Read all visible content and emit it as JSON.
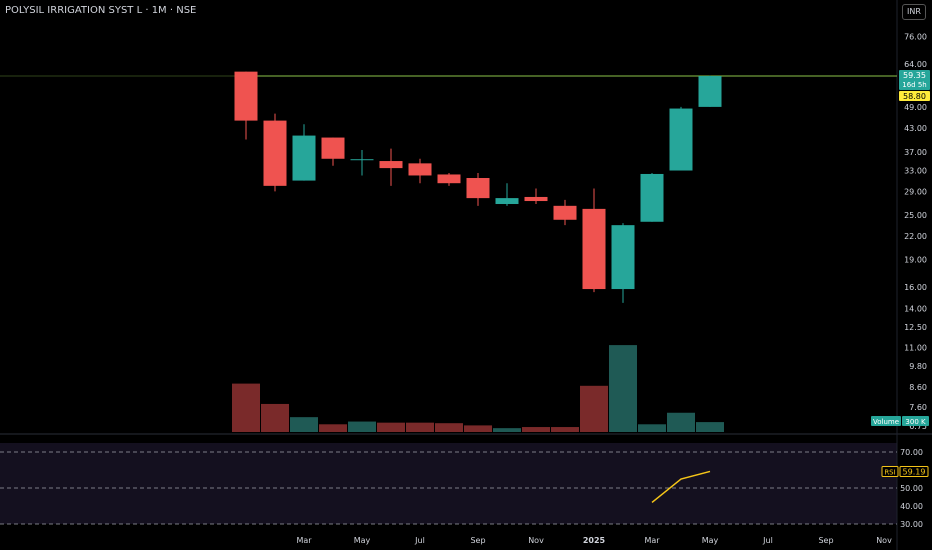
{
  "header": {
    "symbol_line": "POLYSIL IRRIGATION SYST L · 1M · NSE",
    "currency": "INR"
  },
  "colors": {
    "up": "#26a69a",
    "down": "#ef5350",
    "up_volume": "#1f5a55",
    "down_volume": "#7a2a2a",
    "background": "#000000",
    "rsi_line": "#f5c518",
    "hline": "#8bc34a",
    "text": "#d1d4dc"
  },
  "chart_data": [
    {
      "type": "candlestick",
      "title": "POLYSIL IRRIGATION SYST L · 1M · NSE",
      "y_scale": "log",
      "ylim": [
        6.5,
        80
      ],
      "y_ticks": [
        "76.00",
        "64.00",
        "49.00",
        "43.00",
        "37.00",
        "33.00",
        "29.00",
        "25.00",
        "22.00",
        "19.00",
        "16.00",
        "14.00",
        "12.50",
        "11.00",
        "9.80",
        "8.60",
        "7.60",
        "6.75"
      ],
      "x_ticks": [
        "Mar",
        "May",
        "Jul",
        "Sep",
        "Nov",
        "2025",
        "Mar",
        "May",
        "Jul",
        "Sep",
        "Nov"
      ],
      "candles": [
        {
          "x": "2024-01",
          "o": 61.0,
          "h": 61.0,
          "l": 40.0,
          "c": 45.0
        },
        {
          "x": "2024-02",
          "o": 45.0,
          "h": 47.0,
          "l": 29.0,
          "c": 30.0
        },
        {
          "x": "2024-03",
          "o": 31.0,
          "h": 44.0,
          "l": 31.0,
          "c": 41.0
        },
        {
          "x": "2024-04",
          "o": 40.5,
          "h": 40.5,
          "l": 34.0,
          "c": 35.5
        },
        {
          "x": "2024-05",
          "o": 35.2,
          "h": 37.5,
          "l": 32.0,
          "c": 35.4
        },
        {
          "x": "2024-06",
          "o": 35.0,
          "h": 37.8,
          "l": 30.0,
          "c": 33.5
        },
        {
          "x": "2024-07",
          "o": 34.5,
          "h": 35.5,
          "l": 30.5,
          "c": 32.0
        },
        {
          "x": "2024-08",
          "o": 32.2,
          "h": 32.5,
          "l": 30.0,
          "c": 30.5
        },
        {
          "x": "2024-09",
          "o": 31.5,
          "h": 32.5,
          "l": 26.5,
          "c": 27.8
        },
        {
          "x": "2024-10",
          "o": 26.8,
          "h": 30.5,
          "l": 26.5,
          "c": 27.8
        },
        {
          "x": "2024-11",
          "o": 28.0,
          "h": 29.5,
          "l": 26.8,
          "c": 27.3
        },
        {
          "x": "2024-12",
          "o": 26.5,
          "h": 27.5,
          "l": 23.5,
          "c": 24.3
        },
        {
          "x": "2025-01",
          "o": 26.0,
          "h": 29.5,
          "l": 15.5,
          "c": 15.8
        },
        {
          "x": "2025-02",
          "o": 15.8,
          "h": 23.8,
          "l": 14.5,
          "c": 23.5
        },
        {
          "x": "2025-03",
          "o": 24.0,
          "h": 32.5,
          "l": 24.0,
          "c": 32.3
        },
        {
          "x": "2025-04",
          "o": 33.0,
          "h": 49.0,
          "l": 33.0,
          "c": 48.5
        },
        {
          "x": "2025-05",
          "o": 49.0,
          "h": 59.5,
          "l": 49.0,
          "c": 59.35
        }
      ],
      "price_labels": [
        {
          "text": "59.35",
          "sub": "16d 5h",
          "color": "#26a69a",
          "value": 59.35
        },
        {
          "text": "58.80",
          "color": "#ffeb3b",
          "value": 58.8
        }
      ],
      "horizontal_line": {
        "value": 59.35
      }
    },
    {
      "type": "bar",
      "title": "Volume",
      "label": "Volume",
      "value_label": "300 K",
      "max_volume": 1000,
      "volumes": [
        {
          "v": 440,
          "dir": "down"
        },
        {
          "v": 255,
          "dir": "down"
        },
        {
          "v": 135,
          "dir": "up"
        },
        {
          "v": 70,
          "dir": "down"
        },
        {
          "v": 95,
          "dir": "up"
        },
        {
          "v": 85,
          "dir": "down"
        },
        {
          "v": 85,
          "dir": "down"
        },
        {
          "v": 80,
          "dir": "down"
        },
        {
          "v": 60,
          "dir": "down"
        },
        {
          "v": 35,
          "dir": "up"
        },
        {
          "v": 45,
          "dir": "down"
        },
        {
          "v": 45,
          "dir": "down"
        },
        {
          "v": 420,
          "dir": "down"
        },
        {
          "v": 790,
          "dir": "up"
        },
        {
          "v": 70,
          "dir": "up"
        },
        {
          "v": 175,
          "dir": "up"
        },
        {
          "v": 90,
          "dir": "up"
        }
      ]
    },
    {
      "type": "line",
      "title": "RSI",
      "label": "RSI",
      "value_label": "59.19",
      "ylim": [
        30,
        75
      ],
      "y_ticks": [
        "70.00",
        "60.00",
        "50.00",
        "40.00",
        "30.00"
      ],
      "dashed_levels": [
        70,
        50,
        30
      ],
      "points": [
        {
          "x": "2025-03",
          "y": 42
        },
        {
          "x": "2025-04",
          "y": 55
        },
        {
          "x": "2025-05",
          "y": 59.19
        }
      ]
    }
  ]
}
